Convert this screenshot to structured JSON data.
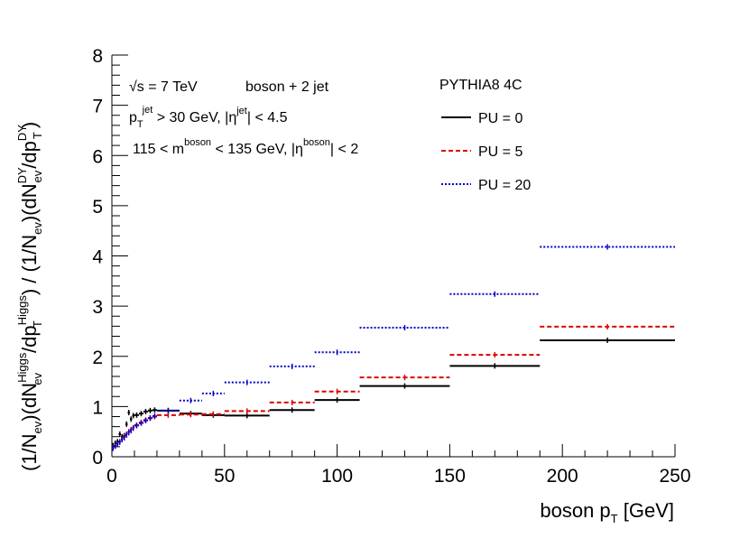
{
  "chart_data": {
    "type": "line",
    "xlabel": "boson p",
    "xlabel_sub": "T",
    "xlabel_unit": "[GeV]",
    "ylabel": {
      "a": "(1/N",
      "a_sub": "ev",
      "b": ")(dN",
      "b_sup": "Higgs",
      "b_sub": "ev",
      "c": "/dp",
      "c_sup": "Higgs",
      "c_sub": "T",
      "d": ") / (1/N",
      "d_sub": "ev",
      "e": ")(dN",
      "e_sup": "DY",
      "e_sub": "ev",
      "f": "/dp",
      "f_sup": "DY",
      "f_sub": "T",
      "g": ")"
    },
    "xlim": [
      0,
      250
    ],
    "ylim": [
      0,
      8
    ],
    "x_ticks": [
      0,
      50,
      100,
      150,
      200,
      250
    ],
    "x_tick_labels": [
      "0",
      "50",
      "100",
      "150",
      "200",
      "250"
    ],
    "y_ticks": [
      0,
      1,
      2,
      3,
      4,
      5,
      6,
      7,
      8
    ],
    "y_tick_labels": [
      "0",
      "1",
      "2",
      "3",
      "4",
      "5",
      "6",
      "7",
      "8"
    ],
    "annotations": {
      "line1_sqrt": "√s",
      "line1_rest": " = 7 TeV",
      "line1_b": "boson + 2 jet",
      "line2_p": "p",
      "line2_p_sub": "T",
      "line2_p_sup": "jet",
      "line2_mid": " > 30 GeV, |η",
      "line2_eta_sup": "jet",
      "line2_end": "| < 4.5",
      "line3_a": "115 < m",
      "line3_a_sup": "boson",
      "line3_b": " < 135 GeV, |η",
      "line3_b_sup": "boson",
      "line3_c": "| < 2"
    },
    "legend": {
      "header": "PYTHIA8 4C",
      "position": "top-right"
    },
    "series": [
      {
        "name": "PU = 0",
        "color": "#000000",
        "style": "solid",
        "bins": [
          [
            0,
            1,
            0.22
          ],
          [
            1,
            2,
            0.27
          ],
          [
            2,
            3,
            0.3
          ],
          [
            3,
            4,
            0.45
          ],
          [
            4,
            5,
            0.4
          ],
          [
            5,
            6,
            0.42
          ],
          [
            6,
            7,
            0.65
          ],
          [
            7,
            8,
            0.88
          ],
          [
            8,
            9,
            0.75
          ],
          [
            9,
            10,
            0.82
          ],
          [
            10,
            12,
            0.83
          ],
          [
            12,
            14,
            0.86
          ],
          [
            14,
            16,
            0.9
          ],
          [
            16,
            18,
            0.92
          ],
          [
            18,
            20,
            0.93
          ],
          [
            20,
            30,
            0.92
          ],
          [
            30,
            40,
            0.86
          ],
          [
            40,
            50,
            0.83
          ],
          [
            50,
            70,
            0.82
          ],
          [
            70,
            90,
            0.93
          ],
          [
            90,
            110,
            1.13
          ],
          [
            110,
            150,
            1.41
          ],
          [
            150,
            190,
            1.81
          ],
          [
            190,
            250,
            2.32
          ]
        ]
      },
      {
        "name": "PU = 5",
        "color": "#dd0000",
        "style": "dashed",
        "bins": [
          [
            0,
            1,
            0.18
          ],
          [
            1,
            2,
            0.22
          ],
          [
            2,
            3,
            0.25
          ],
          [
            3,
            4,
            0.3
          ],
          [
            4,
            5,
            0.35
          ],
          [
            5,
            6,
            0.4
          ],
          [
            6,
            7,
            0.45
          ],
          [
            7,
            8,
            0.5
          ],
          [
            8,
            9,
            0.54
          ],
          [
            9,
            10,
            0.58
          ],
          [
            10,
            12,
            0.63
          ],
          [
            12,
            14,
            0.68
          ],
          [
            14,
            16,
            0.73
          ],
          [
            16,
            18,
            0.77
          ],
          [
            18,
            20,
            0.8
          ],
          [
            20,
            30,
            0.83
          ],
          [
            30,
            40,
            0.84
          ],
          [
            40,
            50,
            0.85
          ],
          [
            50,
            70,
            0.91
          ],
          [
            70,
            90,
            1.08
          ],
          [
            90,
            110,
            1.3
          ],
          [
            110,
            150,
            1.58
          ],
          [
            150,
            190,
            2.03
          ],
          [
            190,
            250,
            2.59
          ]
        ]
      },
      {
        "name": "PU = 20",
        "color": "#0000cc",
        "style": "dotted",
        "bins": [
          [
            0,
            1,
            0.17
          ],
          [
            1,
            2,
            0.21
          ],
          [
            2,
            3,
            0.25
          ],
          [
            3,
            4,
            0.29
          ],
          [
            4,
            5,
            0.34
          ],
          [
            5,
            6,
            0.38
          ],
          [
            6,
            7,
            0.43
          ],
          [
            7,
            8,
            0.48
          ],
          [
            8,
            9,
            0.52
          ],
          [
            9,
            10,
            0.57
          ],
          [
            10,
            12,
            0.62
          ],
          [
            12,
            14,
            0.67
          ],
          [
            14,
            16,
            0.72
          ],
          [
            16,
            18,
            0.77
          ],
          [
            18,
            20,
            0.81
          ],
          [
            20,
            30,
            0.92
          ],
          [
            30,
            40,
            1.12
          ],
          [
            40,
            50,
            1.26
          ],
          [
            50,
            70,
            1.48
          ],
          [
            70,
            90,
            1.8
          ],
          [
            90,
            110,
            2.08
          ],
          [
            110,
            150,
            2.57
          ],
          [
            150,
            190,
            3.24
          ],
          [
            190,
            250,
            4.18
          ]
        ]
      }
    ]
  }
}
